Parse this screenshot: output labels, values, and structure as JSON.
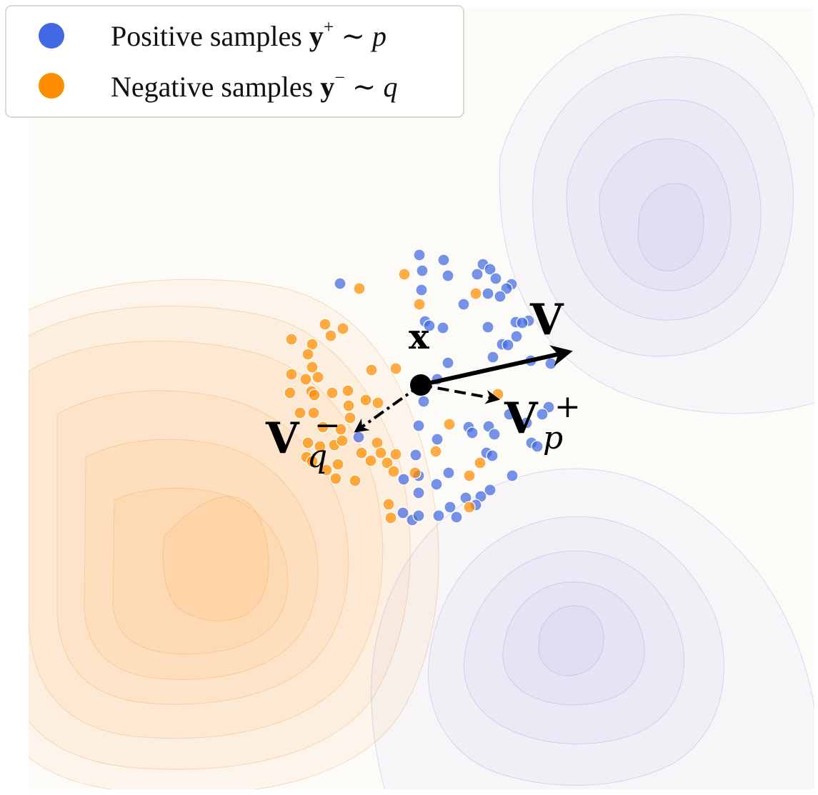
{
  "legend": {
    "position": "top-left",
    "items": [
      {
        "color": "#4169E1",
        "label": "Positive samples ",
        "bold": "y",
        "sup": "+",
        "rest": " ∼ ",
        "dist": "p"
      },
      {
        "color": "#FF8C00",
        "label": "Negative samples ",
        "bold": "y",
        "sup": "−",
        "rest": " ∼ ",
        "dist": "q"
      }
    ]
  },
  "labels": {
    "x": "x",
    "v": "V",
    "v_plus_base": "V",
    "v_plus_sup": "+",
    "v_plus_sub": "p",
    "v_minus_base": "V",
    "v_minus_sup": "−",
    "v_minus_sub": "q"
  },
  "colors": {
    "positive": "#4169E1",
    "negative": "#FF8C00",
    "arrow": "#000000"
  },
  "chart_data": {
    "type": "scatter",
    "grid": false,
    "series": [
      {
        "name": "Positive samples y+ ~ p",
        "color": "#4169E1",
        "points": [
          [
            587,
            357
          ],
          [
            621,
            364
          ],
          [
            676,
            370
          ],
          [
            591,
            379
          ],
          [
            627,
            386
          ],
          [
            668,
            384
          ],
          [
            686,
            377
          ],
          [
            694,
            390
          ],
          [
            716,
            398
          ],
          [
            709,
            404
          ],
          [
            683,
            411
          ],
          [
            700,
            415
          ],
          [
            590,
            406
          ],
          [
            649,
            426
          ],
          [
            595,
            450
          ],
          [
            601,
            456
          ],
          [
            620,
            459
          ],
          [
            683,
            458
          ],
          [
            722,
            451
          ],
          [
            740,
            449
          ],
          [
            731,
            452
          ],
          [
            723,
            471
          ],
          [
            703,
            482
          ],
          [
            711,
            483
          ],
          [
            690,
            500
          ],
          [
            743,
            505
          ],
          [
            771,
            509
          ],
          [
            627,
            508
          ],
          [
            612,
            531
          ],
          [
            593,
            562
          ],
          [
            768,
            570
          ],
          [
            759,
            580
          ],
          [
            713,
            580
          ],
          [
            737,
            592
          ],
          [
            684,
            597
          ],
          [
            656,
            598
          ],
          [
            661,
            606
          ],
          [
            692,
            608
          ],
          [
            744,
            620
          ],
          [
            752,
            625
          ],
          [
            612,
            615
          ],
          [
            586,
            596
          ],
          [
            681,
            634
          ],
          [
            689,
            638
          ],
          [
            582,
            637
          ],
          [
            628,
            662
          ],
          [
            586,
            666
          ],
          [
            565,
            671
          ],
          [
            611,
            678
          ],
          [
            586,
            690
          ],
          [
            717,
            666
          ],
          [
            686,
            686
          ],
          [
            673,
            695
          ],
          [
            652,
            697
          ],
          [
            630,
            710
          ],
          [
            639,
            724
          ],
          [
            614,
            722
          ],
          [
            564,
            718
          ],
          [
            577,
            728
          ],
          [
            666,
            707
          ],
          [
            586,
            722
          ],
          [
            502,
            612
          ],
          [
            476,
            397
          ]
        ]
      },
      {
        "name": "Negative samples y- ~ q",
        "color": "#FF8C00",
        "points": [
          [
            566,
            384
          ],
          [
            503,
            404
          ],
          [
            666,
            411
          ],
          [
            587,
            426
          ],
          [
            455,
            454
          ],
          [
            480,
            460
          ],
          [
            463,
            470
          ],
          [
            408,
            475
          ],
          [
            437,
            482
          ],
          [
            431,
            496
          ],
          [
            437,
            514
          ],
          [
            408,
            524
          ],
          [
            428,
            531
          ],
          [
            445,
            528
          ],
          [
            520,
            518
          ],
          [
            554,
            516
          ],
          [
            436,
            548
          ],
          [
            465,
            550
          ],
          [
            487,
            547
          ],
          [
            406,
            550
          ],
          [
            440,
            553
          ],
          [
            512,
            560
          ],
          [
            529,
            564
          ],
          [
            488,
            568
          ],
          [
            420,
            578
          ],
          [
            439,
            578
          ],
          [
            490,
            585
          ],
          [
            452,
            598
          ],
          [
            477,
            601
          ],
          [
            629,
            594
          ],
          [
            431,
            620
          ],
          [
            448,
            625
          ],
          [
            468,
            623
          ],
          [
            479,
            617
          ],
          [
            528,
            620
          ],
          [
            506,
            634
          ],
          [
            533,
            634
          ],
          [
            554,
            636
          ],
          [
            610,
            632
          ],
          [
            429,
            640
          ],
          [
            437,
            646
          ],
          [
            473,
            650
          ],
          [
            457,
            658
          ],
          [
            470,
            670
          ],
          [
            519,
            645
          ],
          [
            542,
            648
          ],
          [
            551,
            660
          ],
          [
            657,
            666
          ],
          [
            672,
            648
          ],
          [
            581,
            662
          ],
          [
            497,
            673
          ],
          [
            657,
            710
          ],
          [
            544,
            706
          ],
          [
            547,
            725
          ],
          [
            697,
            552
          ]
        ]
      }
    ],
    "vectors": [
      {
        "name": "V",
        "from": [
          589,
          539
        ],
        "to": [
          803,
          490
        ],
        "style": "solid"
      },
      {
        "name": "V+_p",
        "from": [
          589,
          539
        ],
        "to": [
          700,
          560
        ],
        "style": "dashed"
      },
      {
        "name": "V-_q",
        "from": [
          589,
          539
        ],
        "to": [
          495,
          606
        ],
        "style": "dash-dot"
      }
    ],
    "anchor": {
      "name": "x",
      "point": [
        589,
        539
      ]
    },
    "density_contours": [
      {
        "color": "#FF8C00",
        "center": [
          300,
          780
        ],
        "levels": 7
      },
      {
        "color": "#8C8CE6",
        "center": [
          940,
          320
        ],
        "levels": 5
      },
      {
        "color": "#8C8CE6",
        "center": [
          800,
          890
        ],
        "levels": 5
      }
    ]
  }
}
